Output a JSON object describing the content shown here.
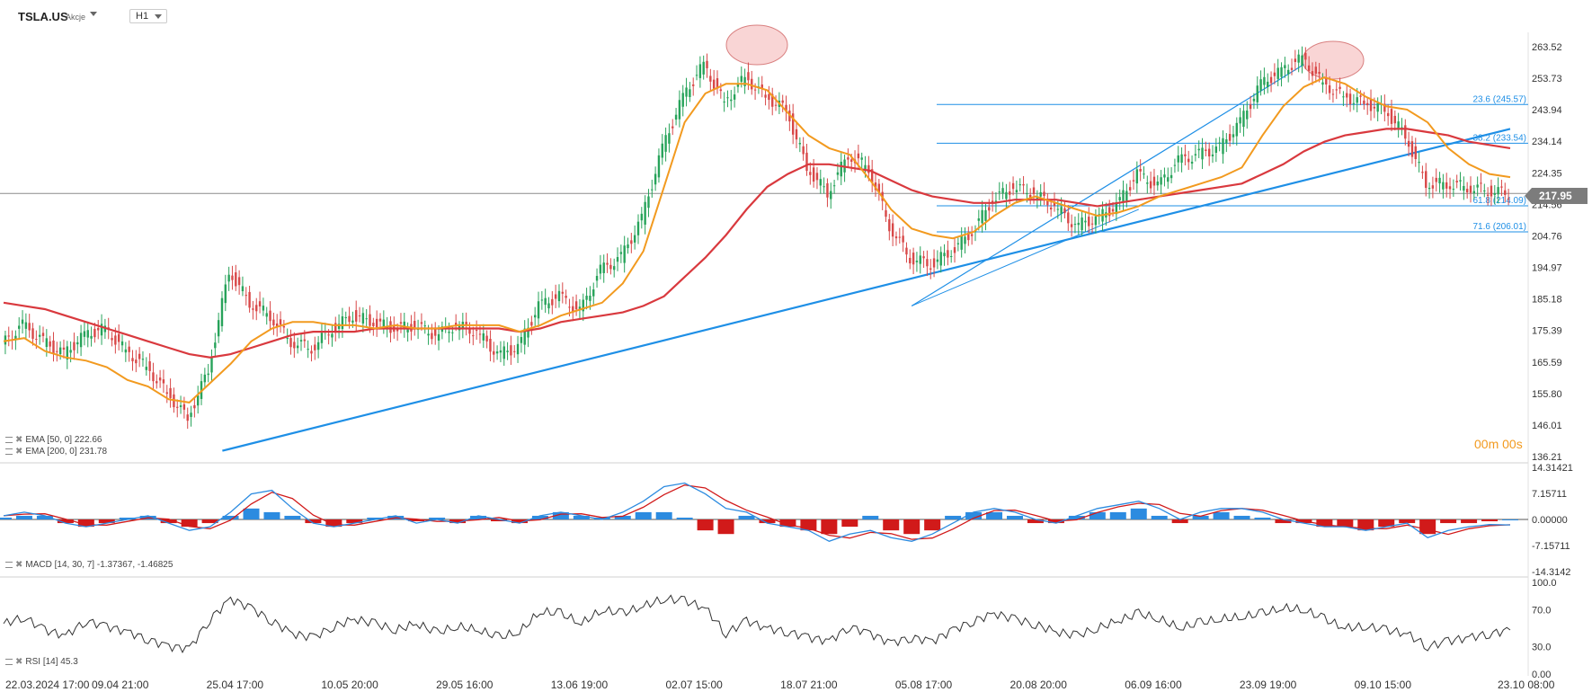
{
  "header": {
    "symbol": "TSLA.US",
    "symbol_type": "Akcje",
    "timeframe": "H1"
  },
  "colors": {
    "ema50": "#f29a1f",
    "ema200": "#d9393e",
    "trendline": "#1e8fe6",
    "fib": "#1e8fe6",
    "macd_pos": "#2c8be0",
    "macd_neg": "#d11a1a",
    "candle_up": "#27a35a",
    "candle_down": "#d84848",
    "highlight": "#f4b2b2"
  },
  "legends": {
    "ema50": "EMA [50, 0]  222.66",
    "ema200": "EMA [200, 0]  231.78",
    "macd": "MACD [14, 30, 7]  -1.37367,  -1.46825",
    "rsi": "RSI [14]  45.3"
  },
  "timer": {
    "minutes": "00m",
    "seconds": "00s"
  },
  "last_price": "217.95",
  "chart_data": [
    {
      "type": "candlestick",
      "title": "TSLA.US",
      "x_ticks": [
        "22.03.2024  17:00",
        "09.04  21:00",
        "25.04  17:00",
        "10.05  20:00",
        "29.05  16:00",
        "13.06  19:00",
        "02.07  15:00",
        "18.07  21:00",
        "05.08  17:00",
        "20.08  20:00",
        "06.09  16:00",
        "23.09  19:00",
        "09.10  15:00",
        "23.10  08:00"
      ],
      "y_ticks": [
        "263.52",
        "253.73",
        "243.94",
        "234.14",
        "224.35",
        "214.56",
        "204.76",
        "194.97",
        "185.18",
        "175.39",
        "165.59",
        "155.80",
        "146.01",
        "136.21"
      ],
      "ylim": [
        136.21,
        263.52
      ],
      "series": [
        {
          "name": "EMA [50, 0]",
          "points": [
            [
              0,
              172
            ],
            [
              1,
              173
            ],
            [
              2,
              169
            ],
            [
              3,
              167
            ],
            [
              4,
              166
            ],
            [
              5,
              164
            ],
            [
              6,
              160
            ],
            [
              7,
              158
            ],
            [
              8,
              154
            ],
            [
              9,
              153
            ],
            [
              10,
              159
            ],
            [
              11,
              165
            ],
            [
              12,
              172
            ],
            [
              13,
              176
            ],
            [
              14,
              178
            ],
            [
              15,
              178
            ],
            [
              16,
              177
            ],
            [
              17,
              177
            ],
            [
              18,
              176
            ],
            [
              19,
              177
            ],
            [
              20,
              176
            ],
            [
              21,
              176
            ],
            [
              22,
              177
            ],
            [
              23,
              177
            ],
            [
              24,
              177
            ],
            [
              25,
              175
            ],
            [
              26,
              177
            ],
            [
              27,
              180
            ],
            [
              28,
              182
            ],
            [
              29,
              184
            ],
            [
              30,
              190
            ],
            [
              31,
              200
            ],
            [
              32,
              220
            ],
            [
              33,
              240
            ],
            [
              34,
              249
            ],
            [
              35,
              252
            ],
            [
              36,
              252
            ],
            [
              37,
              250
            ],
            [
              38,
              243
            ],
            [
              39,
              236
            ],
            [
              40,
              232
            ],
            [
              41,
              230
            ],
            [
              42,
              222
            ],
            [
              43,
              213
            ],
            [
              44,
              207
            ],
            [
              45,
              205
            ],
            [
              46,
              204
            ],
            [
              47,
              206
            ],
            [
              48,
              211
            ],
            [
              49,
              215
            ],
            [
              50,
              217
            ],
            [
              51,
              215
            ],
            [
              52,
              213
            ],
            [
              53,
              211
            ],
            [
              54,
              212
            ],
            [
              55,
              214
            ],
            [
              56,
              217
            ],
            [
              57,
              219
            ],
            [
              58,
              221
            ],
            [
              59,
              223
            ],
            [
              60,
              226
            ],
            [
              61,
              236
            ],
            [
              62,
              245
            ],
            [
              63,
              251
            ],
            [
              64,
              254
            ],
            [
              65,
              252
            ],
            [
              66,
              248
            ],
            [
              67,
              245
            ],
            [
              68,
              244
            ],
            [
              69,
              240
            ],
            [
              70,
              232
            ],
            [
              71,
              227
            ],
            [
              72,
              224
            ],
            [
              73,
              223
            ]
          ]
        },
        {
          "name": "EMA [200, 0]",
          "points": [
            [
              0,
              184
            ],
            [
              1,
              183
            ],
            [
              2,
              182
            ],
            [
              3,
              180
            ],
            [
              4,
              178
            ],
            [
              5,
              176
            ],
            [
              6,
              174
            ],
            [
              7,
              172
            ],
            [
              8,
              170
            ],
            [
              9,
              168
            ],
            [
              10,
              167
            ],
            [
              11,
              168
            ],
            [
              12,
              170
            ],
            [
              13,
              172
            ],
            [
              14,
              174
            ],
            [
              15,
              175
            ],
            [
              16,
              175
            ],
            [
              17,
              175
            ],
            [
              18,
              176
            ],
            [
              19,
              176
            ],
            [
              20,
              176
            ],
            [
              21,
              176
            ],
            [
              22,
              176
            ],
            [
              23,
              176
            ],
            [
              24,
              176
            ],
            [
              25,
              175
            ],
            [
              26,
              176
            ],
            [
              27,
              178
            ],
            [
              28,
              179
            ],
            [
              29,
              180
            ],
            [
              30,
              181
            ],
            [
              31,
              183
            ],
            [
              32,
              186
            ],
            [
              33,
              192
            ],
            [
              34,
              198
            ],
            [
              35,
              205
            ],
            [
              36,
              213
            ],
            [
              37,
              220
            ],
            [
              38,
              224
            ],
            [
              39,
              227
            ],
            [
              40,
              227
            ],
            [
              41,
              226
            ],
            [
              42,
              225
            ],
            [
              43,
              222
            ],
            [
              44,
              219
            ],
            [
              45,
              217
            ],
            [
              46,
              216
            ],
            [
              47,
              215
            ],
            [
              48,
              215
            ],
            [
              49,
              216
            ],
            [
              50,
              216
            ],
            [
              51,
              216
            ],
            [
              52,
              215
            ],
            [
              53,
              214
            ],
            [
              54,
              215
            ],
            [
              55,
              216
            ],
            [
              56,
              217
            ],
            [
              57,
              218
            ],
            [
              58,
              219
            ],
            [
              59,
              220
            ],
            [
              60,
              221
            ],
            [
              61,
              224
            ],
            [
              62,
              227
            ],
            [
              63,
              231
            ],
            [
              64,
              234
            ],
            [
              65,
              236
            ],
            [
              66,
              237
            ],
            [
              67,
              238
            ],
            [
              68,
              238
            ],
            [
              69,
              237
            ],
            [
              70,
              236
            ],
            [
              71,
              234
            ],
            [
              72,
              233
            ],
            [
              73,
              232
            ]
          ]
        },
        {
          "name": "Price",
          "points": [
            [
              0,
              171
            ],
            [
              1,
              177
            ],
            [
              2,
              172
            ],
            [
              3,
              168
            ],
            [
              4,
              174
            ],
            [
              5,
              176
            ],
            [
              6,
              169
            ],
            [
              7,
              164
            ],
            [
              8,
              156
            ],
            [
              9,
              148
            ],
            [
              10,
              163
            ],
            [
              11,
              194
            ],
            [
              12,
              184
            ],
            [
              13,
              180
            ],
            [
              14,
              172
            ],
            [
              15,
              170
            ],
            [
              16,
              176
            ],
            [
              17,
              180
            ],
            [
              18,
              178
            ],
            [
              19,
              176
            ],
            [
              20,
              177
            ],
            [
              21,
              174
            ],
            [
              22,
              177
            ],
            [
              23,
              175
            ],
            [
              24,
              168
            ],
            [
              25,
              170
            ],
            [
              26,
              183
            ],
            [
              27,
              186
            ],
            [
              28,
              181
            ],
            [
              29,
              194
            ],
            [
              30,
              198
            ],
            [
              31,
              210
            ],
            [
              32,
              232
            ],
            [
              33,
              248
            ],
            [
              34,
              258
            ],
            [
              35,
              246
            ],
            [
              36,
              254
            ],
            [
              37,
              248
            ],
            [
              38,
              244
            ],
            [
              39,
              226
            ],
            [
              40,
              218
            ],
            [
              41,
              230
            ],
            [
              42,
              226
            ],
            [
              43,
              208
            ],
            [
              44,
              198
            ],
            [
              45,
              196
            ],
            [
              46,
              200
            ],
            [
              47,
              206
            ],
            [
              48,
              216
            ],
            [
              49,
              220
            ],
            [
              50,
              218
            ],
            [
              51,
              214
            ],
            [
              52,
              208
            ],
            [
              53,
              210
            ],
            [
              54,
              214
            ],
            [
              55,
              224
            ],
            [
              56,
              220
            ],
            [
              57,
              228
            ],
            [
              58,
              230
            ],
            [
              59,
              232
            ],
            [
              60,
              240
            ],
            [
              61,
              252
            ],
            [
              62,
              256
            ],
            [
              63,
              260
            ],
            [
              64,
              252
            ],
            [
              65,
              248
            ],
            [
              66,
              246
            ],
            [
              67,
              244
            ],
            [
              68,
              236
            ],
            [
              69,
              221
            ],
            [
              70,
              221
            ],
            [
              71,
              220
            ],
            [
              72,
              219
            ],
            [
              73,
              218
            ]
          ]
        }
      ],
      "fib_levels": [
        {
          "label": "23.6 (245.57)",
          "value": 245.57
        },
        {
          "label": "38.2 (233.54)",
          "value": 233.54
        },
        {
          "label": "61.8 (214.09)",
          "value": 214.09
        },
        {
          "label": "71.6 (206.01)",
          "value": 206.01
        }
      ],
      "trendlines": [
        {
          "from": [
            10.6,
            138
          ],
          "to": [
            73,
            238
          ]
        },
        {
          "from": [
            44,
            183
          ],
          "to": [
            63,
            258
          ]
        }
      ],
      "horizontal_line": 217.95
    },
    {
      "type": "bar",
      "title": "MACD",
      "y_ticks": [
        "14.31421",
        "7.15711",
        "0.00000",
        "-7.15711",
        "-14.3142"
      ],
      "ylim": [
        -14.3142,
        14.31421
      ],
      "histogram": [
        0.5,
        1,
        1,
        -1,
        -2,
        -1,
        0.5,
        1,
        -1,
        -2,
        -1,
        1,
        3,
        2,
        1,
        -1,
        -2,
        -1,
        0.5,
        1,
        -0.5,
        0.5,
        -1,
        1,
        -0.5,
        -1,
        1,
        2,
        1,
        0.5,
        1,
        2,
        2,
        0.5,
        -3,
        -4,
        1,
        -1,
        -2,
        -3,
        -4,
        -2,
        1,
        -3,
        -4,
        -3,
        1,
        2,
        2,
        1,
        -1,
        -1,
        1,
        2,
        2,
        3,
        1,
        -1,
        1,
        2,
        1,
        0.5,
        -1,
        -1,
        -2,
        -2,
        -3,
        -2,
        -1,
        -4,
        -1,
        -1,
        -0.5,
        0
      ],
      "macd": [
        1,
        2,
        1,
        -1,
        -2,
        -1,
        0,
        1,
        -1,
        -3,
        -2,
        2,
        7,
        8,
        3,
        -1,
        -2,
        -1,
        0,
        1,
        -1,
        0,
        -1,
        1,
        0,
        -1,
        1,
        2,
        1,
        0,
        2,
        5,
        9,
        10,
        7,
        3,
        2,
        -1,
        -2,
        -3,
        -6,
        -4,
        -3,
        -5,
        -6,
        -4,
        -1,
        2,
        3,
        2,
        0,
        -1,
        1,
        3,
        4,
        5,
        3,
        0,
        2,
        3,
        3,
        2,
        0,
        -1,
        -2,
        -2,
        -3,
        -2,
        -1,
        -5,
        -3,
        -2,
        -1.4,
        -1.5
      ]
    },
    {
      "type": "line",
      "title": "RSI",
      "y_ticks": [
        "100.0",
        "70.0",
        "30.0",
        "0.00"
      ],
      "ylim": [
        0,
        100
      ],
      "values": [
        55,
        62,
        48,
        42,
        58,
        52,
        46,
        38,
        30,
        28,
        60,
        82,
        72,
        58,
        44,
        40,
        52,
        60,
        55,
        48,
        55,
        45,
        52,
        48,
        40,
        46,
        68,
        66,
        55,
        70,
        66,
        74,
        82,
        80,
        72,
        44,
        58,
        50,
        46,
        40,
        36,
        52,
        44,
        34,
        40,
        36,
        48,
        58,
        66,
        60,
        54,
        46,
        42,
        50,
        58,
        66,
        60,
        50,
        56,
        60,
        62,
        66,
        72,
        70,
        60,
        50,
        52,
        48,
        44,
        30,
        36,
        40,
        44,
        48
      ]
    }
  ]
}
